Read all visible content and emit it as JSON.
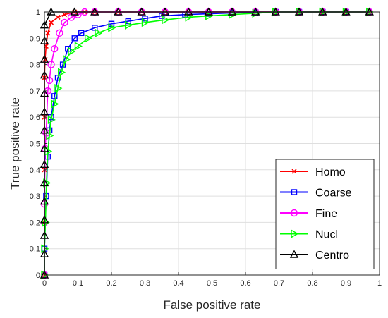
{
  "chart_data": {
    "type": "line",
    "xlabel": "False positive rate",
    "ylabel": "True positive rate",
    "xlim": [
      0,
      1
    ],
    "ylim": [
      0,
      1
    ],
    "xticks": [
      "0",
      "0.1",
      "0.2",
      "0.3",
      "0.4",
      "0.5",
      "0.6",
      "0.7",
      "0.8",
      "0.9",
      "1"
    ],
    "yticks": [
      "0",
      "0.1",
      "0.2",
      "0.3",
      "0.4",
      "0.5",
      "0.6",
      "0.7",
      "0.8",
      "0.9",
      "1"
    ],
    "grid": true,
    "legend_position": "bottom-right",
    "series": [
      {
        "name": "Homo",
        "color": "#ff0000",
        "marker": "x",
        "x": [
          0,
          0,
          0,
          0,
          0,
          0.002,
          0.005,
          0.01,
          0.02,
          0.04,
          0.06,
          0.09,
          0.12,
          0.15,
          0.22,
          0.29,
          0.36,
          0.43,
          0.49,
          0.56,
          0.63,
          0.69,
          0.76,
          0.83,
          0.9,
          0.97
        ],
        "y": [
          0,
          0.2,
          0.4,
          0.6,
          0.75,
          0.82,
          0.87,
          0.92,
          0.96,
          0.98,
          0.99,
          1,
          1,
          1,
          1,
          1,
          1,
          1,
          1,
          1,
          1,
          1,
          1,
          1,
          1,
          1
        ]
      },
      {
        "name": "Coarse",
        "color": "#0000ff",
        "marker": "square",
        "x": [
          0,
          0,
          0.005,
          0.01,
          0.015,
          0.02,
          0.03,
          0.04,
          0.055,
          0.07,
          0.09,
          0.11,
          0.15,
          0.2,
          0.25,
          0.3,
          0.35,
          0.42,
          0.49,
          0.56,
          0.63,
          0.69,
          0.76,
          0.83,
          0.9,
          0.97
        ],
        "y": [
          0,
          0.1,
          0.3,
          0.45,
          0.55,
          0.6,
          0.68,
          0.75,
          0.8,
          0.86,
          0.9,
          0.92,
          0.94,
          0.955,
          0.965,
          0.975,
          0.985,
          0.99,
          0.993,
          0.996,
          0.998,
          1,
          1,
          1,
          1,
          1
        ]
      },
      {
        "name": "Fine",
        "color": "#ff00ff",
        "marker": "circle",
        "x": [
          0,
          0,
          0,
          0.002,
          0.005,
          0.01,
          0.015,
          0.02,
          0.03,
          0.045,
          0.06,
          0.08,
          0.1,
          0.12,
          0.15,
          0.22,
          0.29,
          0.36,
          0.43,
          0.49,
          0.56,
          0.63,
          0.69,
          0.76,
          0.83,
          0.9,
          0.97
        ],
        "y": [
          0,
          0.2,
          0.27,
          0.48,
          0.54,
          0.7,
          0.74,
          0.8,
          0.86,
          0.92,
          0.96,
          0.98,
          0.99,
          1,
          1,
          1,
          1,
          1,
          1,
          1,
          1,
          1,
          1,
          1,
          1,
          1,
          1
        ]
      },
      {
        "name": "Nucl",
        "color": "#00ff00",
        "marker": "triangle-right",
        "x": [
          0,
          0,
          0.003,
          0.006,
          0.01,
          0.015,
          0.02,
          0.03,
          0.04,
          0.05,
          0.065,
          0.08,
          0.1,
          0.13,
          0.16,
          0.2,
          0.25,
          0.3,
          0.36,
          0.43,
          0.49,
          0.56,
          0.63,
          0.69,
          0.76,
          0.83,
          0.9,
          0.97
        ],
        "y": [
          0,
          0.1,
          0.2,
          0.35,
          0.47,
          0.53,
          0.59,
          0.65,
          0.71,
          0.77,
          0.82,
          0.85,
          0.87,
          0.9,
          0.92,
          0.94,
          0.95,
          0.96,
          0.97,
          0.98,
          0.985,
          0.99,
          0.995,
          1,
          1,
          1,
          1,
          1
        ]
      },
      {
        "name": "Centro",
        "color": "#000000",
        "marker": "triangle-up",
        "x": [
          0,
          0,
          0,
          0,
          0,
          0,
          0,
          0,
          0,
          0,
          0,
          0,
          0,
          0,
          0,
          0.02,
          0.09,
          0.15,
          0.22,
          0.29,
          0.36,
          0.43,
          0.49,
          0.56,
          0.63,
          0.69,
          0.76,
          0.83,
          0.9,
          0.97
        ],
        "y": [
          0,
          0.08,
          0.15,
          0.21,
          0.28,
          0.35,
          0.42,
          0.48,
          0.55,
          0.62,
          0.69,
          0.76,
          0.82,
          0.89,
          0.95,
          1,
          1,
          1,
          1,
          1,
          1,
          1,
          1,
          1,
          1,
          1,
          1,
          1,
          1,
          1
        ]
      }
    ]
  }
}
